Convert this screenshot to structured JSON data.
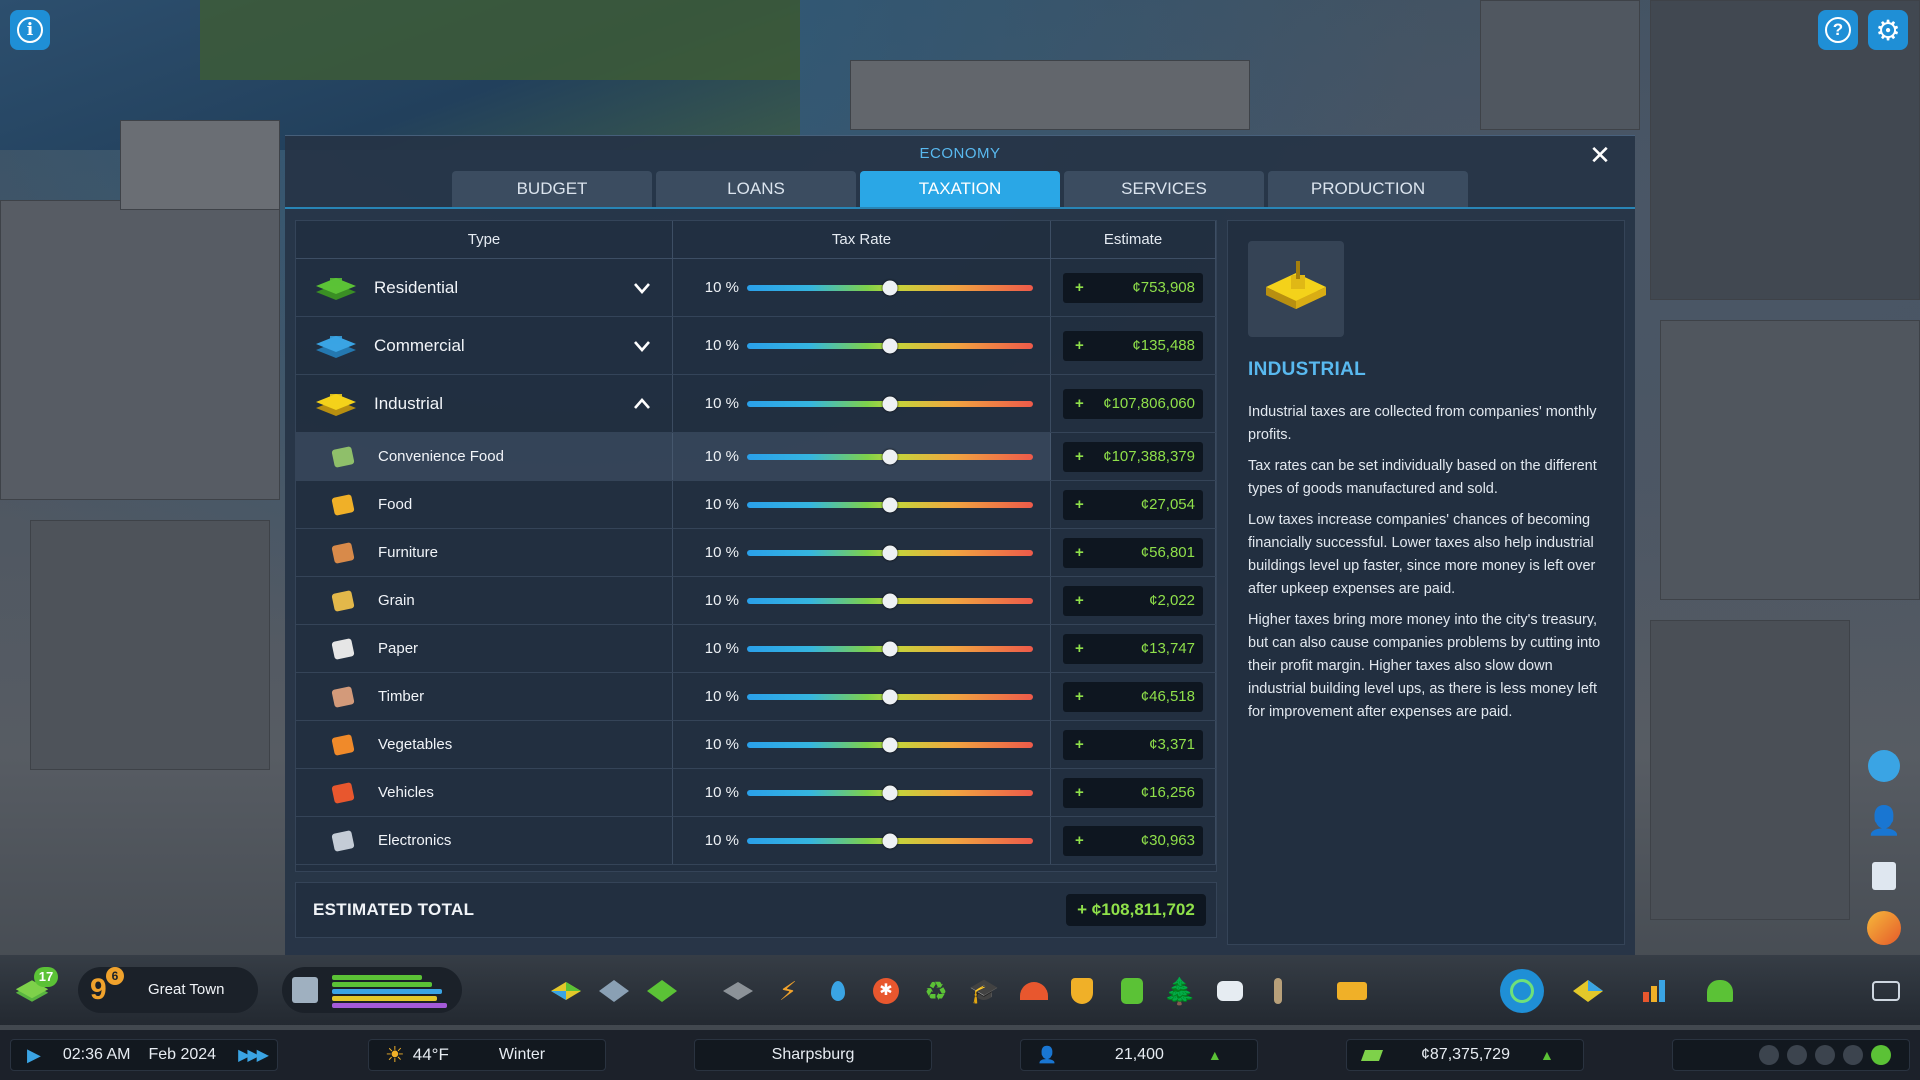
{
  "panel": {
    "title": "ECONOMY",
    "tabs": [
      {
        "label": "BUDGET"
      },
      {
        "label": "LOANS"
      },
      {
        "label": "TAXATION"
      },
      {
        "label": "SERVICES"
      },
      {
        "label": "PRODUCTION"
      }
    ],
    "active_tab": "TAXATION"
  },
  "table": {
    "headers": {
      "type": "Type",
      "rate": "Tax Rate",
      "estimate": "Estimate"
    },
    "rows": [
      {
        "label": "Residential",
        "rate": "10 %",
        "rate_value": 10,
        "sign": "+",
        "estimate": "¢753,908"
      },
      {
        "label": "Commercial",
        "rate": "10 %",
        "rate_value": 10,
        "sign": "+",
        "estimate": "¢135,488"
      },
      {
        "label": "Industrial",
        "rate": "10 %",
        "rate_value": 10,
        "sign": "+",
        "estimate": "¢107,806,060"
      },
      {
        "label": "Convenience Food",
        "rate": "10 %",
        "rate_value": 10,
        "sign": "+",
        "estimate": "¢107,388,379"
      },
      {
        "label": "Food",
        "rate": "10 %",
        "rate_value": 10,
        "sign": "+",
        "estimate": "¢27,054"
      },
      {
        "label": "Furniture",
        "rate": "10 %",
        "rate_value": 10,
        "sign": "+",
        "estimate": "¢56,801"
      },
      {
        "label": "Grain",
        "rate": "10 %",
        "rate_value": 10,
        "sign": "+",
        "estimate": "¢2,022"
      },
      {
        "label": "Paper",
        "rate": "10 %",
        "rate_value": 10,
        "sign": "+",
        "estimate": "¢13,747"
      },
      {
        "label": "Timber",
        "rate": "10 %",
        "rate_value": 10,
        "sign": "+",
        "estimate": "¢46,518"
      },
      {
        "label": "Vegetables",
        "rate": "10 %",
        "rate_value": 10,
        "sign": "+",
        "estimate": "¢3,371"
      },
      {
        "label": "Vehicles",
        "rate": "10 %",
        "rate_value": 10,
        "sign": "+",
        "estimate": "¢16,256"
      },
      {
        "label": "Electronics",
        "rate": "10 %",
        "rate_value": 10,
        "sign": "+",
        "estimate": "¢30,963"
      }
    ],
    "total_label": "ESTIMATED TOTAL",
    "total_value": "+ ¢108,811,702"
  },
  "info": {
    "title": "INDUSTRIAL",
    "paragraphs": [
      "Industrial taxes are collected from companies' monthly profits.",
      "Tax rates can be set individually based on the different types of goods manufactured and sold.",
      "Low taxes increase companies' chances of becoming financially successful. Lower taxes also help industrial buildings level up faster, since more money is left over after upkeep expenses are paid.",
      "Higher taxes bring more money into the city's treasury, but can also cause companies problems by cutting into their profit margin. Higher taxes also slow down industrial building level ups, as there is less money left for improvement after expenses are paid."
    ]
  },
  "toolbar": {
    "level_badge": "17",
    "milestone_number": "9",
    "milestone_badge": "6",
    "city_rank": "Great Town"
  },
  "statusbar": {
    "time": "02:36 AM",
    "date": "Feb 2024",
    "temperature": "44°F",
    "season": "Winter",
    "city_name": "Sharpsburg",
    "population": "21,400",
    "money": "¢87,375,729"
  },
  "colors": {
    "accent": "#2aa7e6",
    "positive": "#8fe04a",
    "title_blue": "#59b9ef"
  }
}
